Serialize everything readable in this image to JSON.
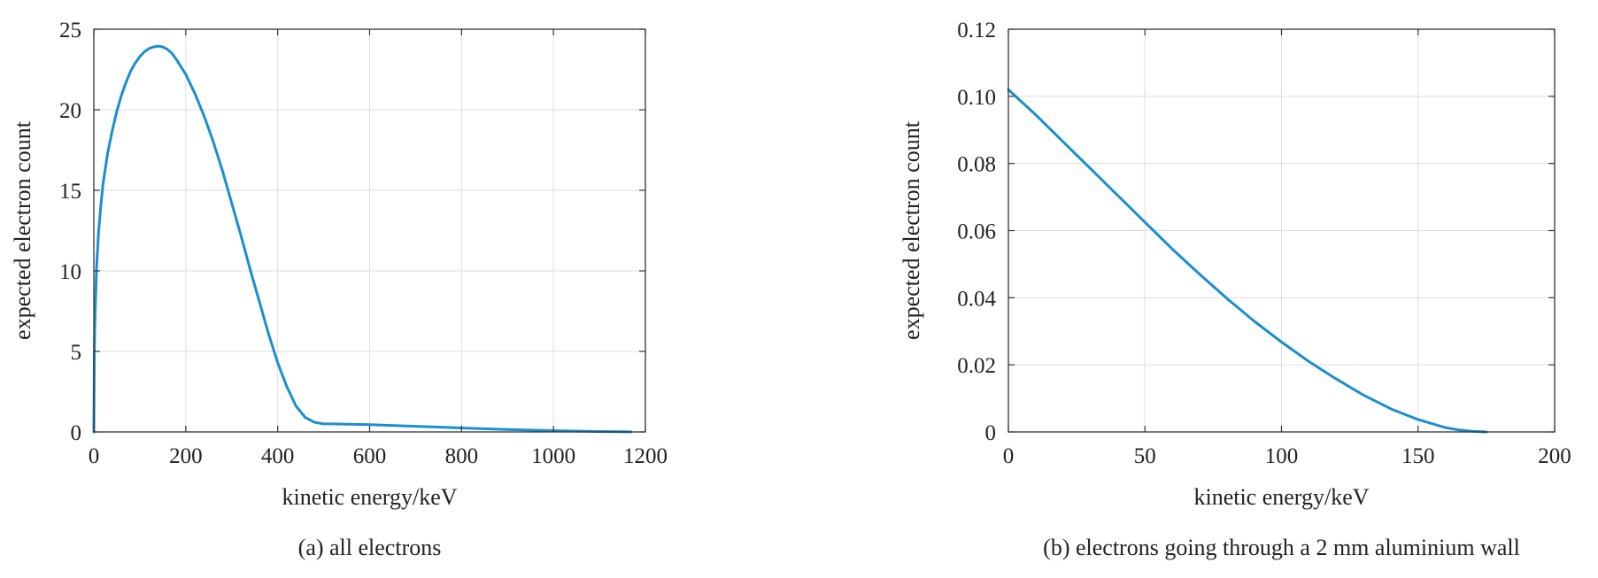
{
  "colors": {
    "line": "#1a8fd0",
    "grid": "#dedede",
    "axis": "#333333",
    "text": "#222222"
  },
  "chart_data": [
    {
      "type": "line",
      "caption": "(a) all electrons",
      "xlabel": "kinetic energy/keV",
      "ylabel": "expected electron count",
      "xlim": [
        0,
        1200
      ],
      "ylim": [
        0,
        25
      ],
      "xticks": [
        0,
        200,
        400,
        600,
        800,
        1000,
        1200
      ],
      "xtick_labels": [
        "0",
        "200",
        "400",
        "600",
        "800",
        "1000",
        "1200"
      ],
      "yticks": [
        0,
        5,
        10,
        15,
        20,
        25
      ],
      "ytick_labels": [
        "0",
        "5",
        "10",
        "15",
        "20",
        "25"
      ],
      "grid": true,
      "series": [
        {
          "x": [
            0,
            1,
            2,
            4,
            6,
            10,
            15,
            20,
            30,
            40,
            50,
            60,
            70,
            80,
            90,
            100,
            110,
            120,
            130,
            140,
            150,
            160,
            170,
            180,
            200,
            220,
            240,
            260,
            280,
            300,
            320,
            340,
            360,
            380,
            400,
            420,
            440,
            460,
            480,
            500,
            510,
            520,
            600,
            700,
            800,
            900,
            1000,
            1100,
            1168
          ],
          "y": [
            0,
            4.5,
            6.5,
            8.5,
            10.2,
            12.3,
            14.0,
            15.4,
            17.3,
            18.7,
            19.9,
            20.9,
            21.7,
            22.4,
            22.9,
            23.3,
            23.6,
            23.8,
            23.9,
            23.95,
            23.9,
            23.75,
            23.5,
            23.1,
            22.2,
            21.0,
            19.6,
            18.0,
            16.2,
            14.2,
            12.2,
            10.1,
            8.1,
            6.1,
            4.3,
            2.8,
            1.6,
            0.9,
            0.6,
            0.5,
            0.5,
            0.5,
            0.45,
            0.35,
            0.25,
            0.15,
            0.08,
            0.03,
            0.01
          ]
        }
      ]
    },
    {
      "type": "line",
      "caption": "(b) electrons going through a 2 mm aluminium wall",
      "xlabel": "kinetic energy/keV",
      "ylabel": "expected electron count",
      "xlim": [
        0,
        200
      ],
      "ylim": [
        0,
        0.12
      ],
      "xticks": [
        0,
        50,
        100,
        150,
        200
      ],
      "xtick_labels": [
        "0",
        "50",
        "100",
        "150",
        "200"
      ],
      "yticks": [
        0,
        0.02,
        0.04,
        0.06,
        0.08,
        0.1,
        0.12
      ],
      "ytick_labels": [
        "0",
        "0.02",
        "0.04",
        "0.06",
        "0.08",
        "0.10",
        "0.12"
      ],
      "grid": true,
      "series": [
        {
          "x": [
            0,
            10,
            20,
            30,
            40,
            50,
            60,
            70,
            80,
            90,
            100,
            110,
            120,
            130,
            140,
            150,
            160,
            165,
            170,
            175
          ],
          "y": [
            0.102,
            0.0945,
            0.0865,
            0.0785,
            0.0705,
            0.0625,
            0.0545,
            0.047,
            0.0398,
            0.033,
            0.0268,
            0.021,
            0.0158,
            0.011,
            0.0069,
            0.0037,
            0.0013,
            0.0006,
            0.0002,
            0.0
          ]
        }
      ]
    }
  ]
}
